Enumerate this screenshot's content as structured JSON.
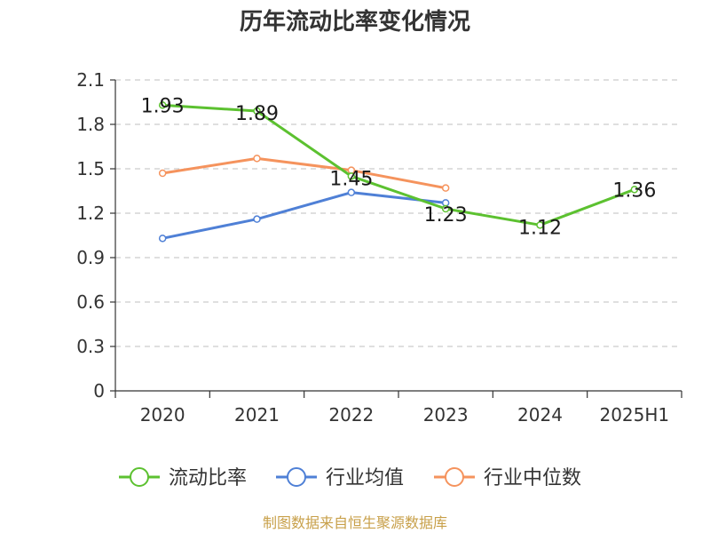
{
  "title": "历年流动比率变化情况",
  "source": "制图数据来自恒生聚源数据库",
  "chart_data": {
    "type": "line",
    "title": "历年流动比率变化情况",
    "categories": [
      "2020",
      "2021",
      "2022",
      "2023",
      "2024",
      "2025H1"
    ],
    "ylim": [
      0,
      2.1
    ],
    "yticks": [
      0,
      0.3,
      0.6,
      0.9,
      1.2,
      1.5,
      1.8,
      2.1
    ],
    "ytick_labels": [
      "0",
      "0.3",
      "0.6",
      "0.9",
      "1.2",
      "1.5",
      "1.8",
      "2.1"
    ],
    "grid": true,
    "legend_position": "bottom",
    "series": [
      {
        "name": "流动比率",
        "color": "#5cc130",
        "values": [
          1.93,
          1.89,
          1.45,
          1.23,
          1.12,
          1.36
        ],
        "labels": [
          "1.93",
          "1.89",
          "1.45",
          "1.23",
          "1.12",
          "1.36"
        ]
      },
      {
        "name": "行业均值",
        "color": "#4f80d6",
        "values": [
          1.03,
          1.16,
          1.34,
          1.27,
          null,
          null
        ]
      },
      {
        "name": "行业中位数",
        "color": "#f5935d",
        "values": [
          1.47,
          1.57,
          1.49,
          1.37,
          null,
          null
        ]
      }
    ]
  }
}
